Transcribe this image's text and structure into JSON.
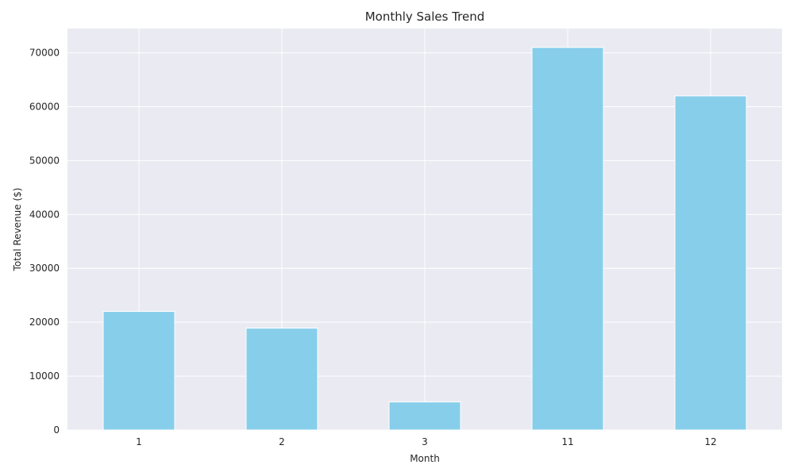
{
  "chart_data": {
    "type": "bar",
    "title": "Monthly Sales Trend",
    "xlabel": "Month",
    "ylabel": "Total Revenue ($)",
    "categories": [
      "1",
      "2",
      "3",
      "11",
      "12"
    ],
    "values": [
      22000,
      18900,
      5200,
      71000,
      62000
    ],
    "ylim": [
      0,
      74500
    ],
    "yticks": [
      "0",
      "10000",
      "20000",
      "30000",
      "40000",
      "50000",
      "60000",
      "70000"
    ],
    "grid": true,
    "colors": {
      "bar": "#87ceeb",
      "plot_background": "#eaeaf2",
      "grid": "#ffffff"
    }
  }
}
